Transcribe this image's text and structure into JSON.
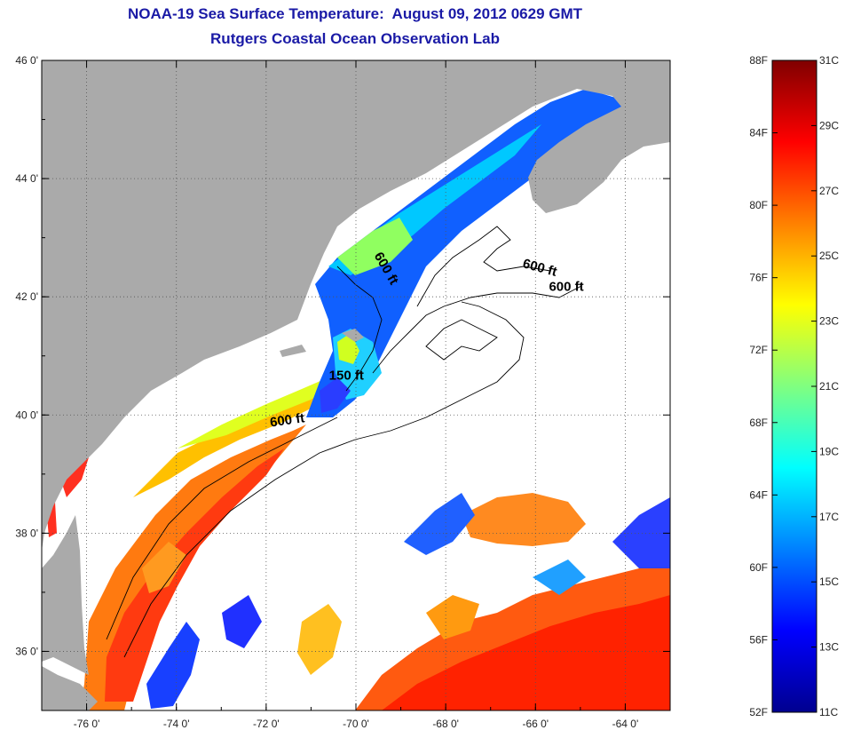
{
  "title": "NOAA-19 Sea Surface Temperature:  August 09, 2012 0629 GMT",
  "subtitle": "Rutgers Coastal Ocean Observation Lab",
  "map": {
    "lon_range": [
      -77,
      -63
    ],
    "lat_range": [
      35,
      46
    ],
    "lon_ticks": [
      -76,
      -74,
      -72,
      -70,
      -68,
      -66,
      -64
    ],
    "lon_tick_labels": [
      "-76 0'",
      "-74 0'",
      "-72 0'",
      "-70 0'",
      "-68 0'",
      "-66 0'",
      "-64 0'"
    ],
    "lat_ticks": [
      46,
      44,
      42,
      40,
      38,
      36
    ],
    "lat_tick_labels": [
      "46 0'",
      "44 0'",
      "42 0'",
      "40 0'",
      "38 0'",
      "36 0'"
    ],
    "grid": "dotted",
    "land_color": "#aaaaaa",
    "cloud_color": "#ffffff",
    "isobath_labels": [
      {
        "text": "600 ft",
        "lon": -69.6,
        "lat": 42.7,
        "rotate": 60
      },
      {
        "text": "600 ft",
        "lon": -66.3,
        "lat": 42.5,
        "rotate": 15
      },
      {
        "text": "600 ft",
        "lon": -65.7,
        "lat": 42.1,
        "rotate": 0
      },
      {
        "text": "150 ft",
        "lon": -70.6,
        "lat": 40.6,
        "rotate": 0
      },
      {
        "text": "600 ft",
        "lon": -71.9,
        "lat": 39.8,
        "rotate": -8
      }
    ]
  },
  "colorbar": {
    "colors": [
      "#00008f",
      "#0000ff",
      "#0080ff",
      "#00ffff",
      "#80ff80",
      "#ffff00",
      "#ff8000",
      "#ff0000",
      "#800000"
    ],
    "f_labels": [
      "88F",
      "84F",
      "80F",
      "76F",
      "72F",
      "68F",
      "64F",
      "60F",
      "56F",
      "52F"
    ],
    "f_values": [
      88,
      84,
      80,
      76,
      72,
      68,
      64,
      60,
      56,
      52
    ],
    "f_range": [
      52,
      88
    ],
    "c_labels": [
      "31C",
      "29C",
      "27C",
      "25C",
      "23C",
      "21C",
      "19C",
      "17C",
      "15C",
      "13C",
      "11C"
    ],
    "c_values": [
      31,
      29,
      27,
      25,
      23,
      21,
      19,
      17,
      15,
      13,
      11
    ],
    "c_range": [
      11,
      31
    ]
  }
}
